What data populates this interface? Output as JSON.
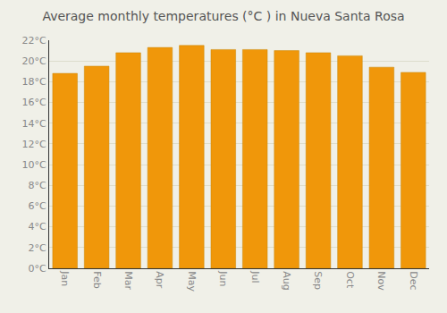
{
  "chart_data": {
    "type": "bar",
    "title": "Average monthly temperatures (°C ) in Nueva Santa Rosa",
    "categories": [
      "Jan",
      "Feb",
      "Mar",
      "Apr",
      "May",
      "Jun",
      "Jul",
      "Aug",
      "Sep",
      "Oct",
      "Nov",
      "Dec"
    ],
    "values": [
      18.8,
      19.5,
      20.8,
      21.3,
      21.5,
      21.1,
      21.1,
      21.0,
      20.8,
      20.5,
      19.4,
      18.9
    ],
    "color": "#F0970A",
    "ylim": [
      0,
      22
    ],
    "yticks": [
      {
        "value": 0,
        "label": "0°C"
      },
      {
        "value": 2,
        "label": "2°C"
      },
      {
        "value": 4,
        "label": "4°C"
      },
      {
        "value": 6,
        "label": "6°C"
      },
      {
        "value": 8,
        "label": "8°C"
      },
      {
        "value": 10,
        "label": "10°C"
      },
      {
        "value": 12,
        "label": "12°C"
      },
      {
        "value": 14,
        "label": "14°C"
      },
      {
        "value": 16,
        "label": "16°C"
      },
      {
        "value": 18,
        "label": "18°C"
      },
      {
        "value": 20,
        "label": "20°C"
      },
      {
        "value": 22,
        "label": "22°C"
      }
    ],
    "grid": true
  }
}
